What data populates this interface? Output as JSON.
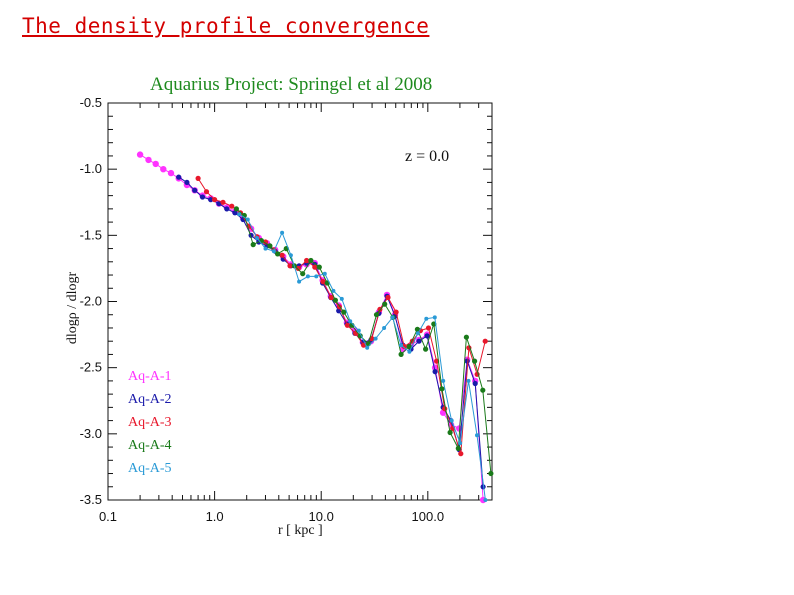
{
  "slide": {
    "title": "The density profile convergence"
  },
  "chart_data": {
    "type": "line",
    "title": "Aquarius Project: Springel et al 2008",
    "annotation": "z = 0.0",
    "xlabel": "r [ kpc ]",
    "ylabel": "dlogρ / dlogr",
    "xscale": "log",
    "xlim": [
      0.1,
      400
    ],
    "ylim": [
      -3.5,
      -0.5
    ],
    "xticks": [
      {
        "value": 0.1,
        "label": "0.1"
      },
      {
        "value": 1,
        "label": "1.0"
      },
      {
        "value": 10,
        "label": "10.0"
      },
      {
        "value": 100,
        "label": "100.0"
      }
    ],
    "yticks": [
      {
        "value": -0.5,
        "label": "-0.5"
      },
      {
        "value": -1.0,
        "label": "-1.0"
      },
      {
        "value": -1.5,
        "label": "-1.5"
      },
      {
        "value": -2.0,
        "label": "-2.0"
      },
      {
        "value": -2.5,
        "label": "-2.5"
      },
      {
        "value": -3.0,
        "label": "-3.0"
      },
      {
        "value": -3.5,
        "label": "-3.5"
      }
    ],
    "series": [
      {
        "name": "Aq-A-1",
        "color": "#ff33ff",
        "x": [
          0.2,
          0.24,
          0.28,
          0.33,
          0.39,
          0.46,
          0.55,
          0.65,
          0.77,
          0.92,
          1.1,
          1.3,
          1.55,
          1.85,
          2.2,
          2.6,
          3.1,
          3.7,
          4.4,
          5.2,
          6.2,
          7.3,
          8.7,
          10.3,
          12.3,
          14.6,
          17.4,
          20.7,
          24.6,
          29.3,
          34.8,
          41.4,
          49.2,
          58.5,
          69.6,
          82.7,
          98.4,
          117,
          139,
          165,
          197,
          234,
          278,
          330
        ],
        "y": [
          -0.89,
          -0.93,
          -0.96,
          -1.0,
          -1.03,
          -1.07,
          -1.12,
          -1.16,
          -1.2,
          -1.22,
          -1.26,
          -1.29,
          -1.32,
          -1.37,
          -1.45,
          -1.52,
          -1.56,
          -1.61,
          -1.66,
          -1.72,
          -1.74,
          -1.72,
          -1.71,
          -1.84,
          -1.96,
          -2.03,
          -2.16,
          -2.22,
          -2.31,
          -2.3,
          -2.08,
          -1.95,
          -2.1,
          -2.36,
          -2.33,
          -2.29,
          -2.25,
          -2.5,
          -2.84,
          -2.93,
          -2.96,
          -2.44,
          -2.6,
          -3.5
        ]
      },
      {
        "name": "Aq-A-2",
        "color": "#1a1aaa",
        "x": [
          0.46,
          0.55,
          0.65,
          0.77,
          0.92,
          1.1,
          1.3,
          1.55,
          1.85,
          2.2,
          2.6,
          3.1,
          3.7,
          4.4,
          5.2,
          6.2,
          7.3,
          8.7,
          10.3,
          12.3,
          14.6,
          17.4,
          20.7,
          24.6,
          29.3,
          34.8,
          41.4,
          49.2,
          58.5,
          69.6,
          82.7,
          98.4,
          117,
          139,
          165,
          197,
          234,
          278,
          330
        ],
        "y": [
          -1.06,
          -1.1,
          -1.16,
          -1.21,
          -1.23,
          -1.26,
          -1.3,
          -1.33,
          -1.38,
          -1.5,
          -1.55,
          -1.58,
          -1.62,
          -1.68,
          -1.73,
          -1.73,
          -1.71,
          -1.72,
          -1.86,
          -1.97,
          -2.07,
          -2.17,
          -2.24,
          -2.31,
          -2.29,
          -2.09,
          -1.96,
          -2.11,
          -2.33,
          -2.36,
          -2.3,
          -2.26,
          -2.53,
          -2.8,
          -2.9,
          -3.12,
          -2.45,
          -2.62,
          -3.4
        ]
      },
      {
        "name": "Aq-A-3",
        "color": "#e8182c",
        "x": [
          0.7,
          0.84,
          1.0,
          1.2,
          1.45,
          1.75,
          2.1,
          2.5,
          3.0,
          3.6,
          4.3,
          5.1,
          6.1,
          7.3,
          8.7,
          10.4,
          12.4,
          14.8,
          17.6,
          21.0,
          25.0,
          29.8,
          35.5,
          42.3,
          50.4,
          60.0,
          71.5,
          85.2,
          101.5,
          121,
          144,
          171,
          204,
          243,
          290,
          345
        ],
        "y": [
          -1.07,
          -1.17,
          -1.23,
          -1.25,
          -1.28,
          -1.33,
          -1.43,
          -1.51,
          -1.55,
          -1.61,
          -1.65,
          -1.73,
          -1.75,
          -1.69,
          -1.74,
          -1.85,
          -1.97,
          -2.04,
          -2.18,
          -2.24,
          -2.33,
          -2.28,
          -2.06,
          -1.97,
          -2.08,
          -2.34,
          -2.3,
          -2.22,
          -2.2,
          -2.45,
          -2.81,
          -2.96,
          -3.15,
          -2.35,
          -2.55,
          -2.3
        ]
      },
      {
        "name": "Aq-A-4",
        "color": "#1a7a1a",
        "x": [
          1.6,
          1.9,
          2.3,
          2.75,
          3.3,
          3.9,
          4.7,
          5.6,
          6.7,
          8.0,
          9.6,
          11.4,
          13.6,
          16.3,
          19.4,
          23.2,
          27.7,
          33.0,
          39.4,
          47.0,
          56.1,
          66.9,
          79.9,
          95.3,
          113.7,
          135.6,
          161.8,
          193,
          230.3,
          274.8,
          327.8,
          391
        ],
        "y": [
          -1.3,
          -1.35,
          -1.57,
          -1.54,
          -1.58,
          -1.64,
          -1.6,
          -1.73,
          -1.79,
          -1.69,
          -1.74,
          -1.86,
          -1.99,
          -2.08,
          -2.18,
          -2.26,
          -2.32,
          -2.1,
          -2.02,
          -2.12,
          -2.4,
          -2.34,
          -2.21,
          -2.36,
          -2.17,
          -2.66,
          -2.99,
          -3.11,
          -2.27,
          -2.45,
          -2.67,
          -3.3
        ]
      },
      {
        "name": "Aq-A-5",
        "color": "#2a9ad6",
        "x": [
          1.7,
          2.05,
          2.5,
          3.0,
          3.6,
          4.3,
          5.2,
          6.2,
          7.5,
          9.0,
          10.8,
          13.0,
          15.6,
          18.7,
          22.5,
          27.0,
          32.4,
          38.9,
          46.7,
          56.0,
          67.2,
          80.7,
          96.8,
          116.2,
          139.4,
          167.3,
          200.8,
          240.9,
          289.1,
          347
        ],
        "y": [
          -1.34,
          -1.38,
          -1.52,
          -1.6,
          -1.62,
          -1.48,
          -1.65,
          -1.85,
          -1.81,
          -1.81,
          -1.79,
          -1.92,
          -1.98,
          -2.15,
          -2.22,
          -2.35,
          -2.28,
          -2.2,
          -2.12,
          -2.33,
          -2.38,
          -2.24,
          -2.13,
          -2.12,
          -2.6,
          -2.9,
          -3.07,
          -2.6,
          -3.01,
          -3.5
        ]
      }
    ]
  }
}
